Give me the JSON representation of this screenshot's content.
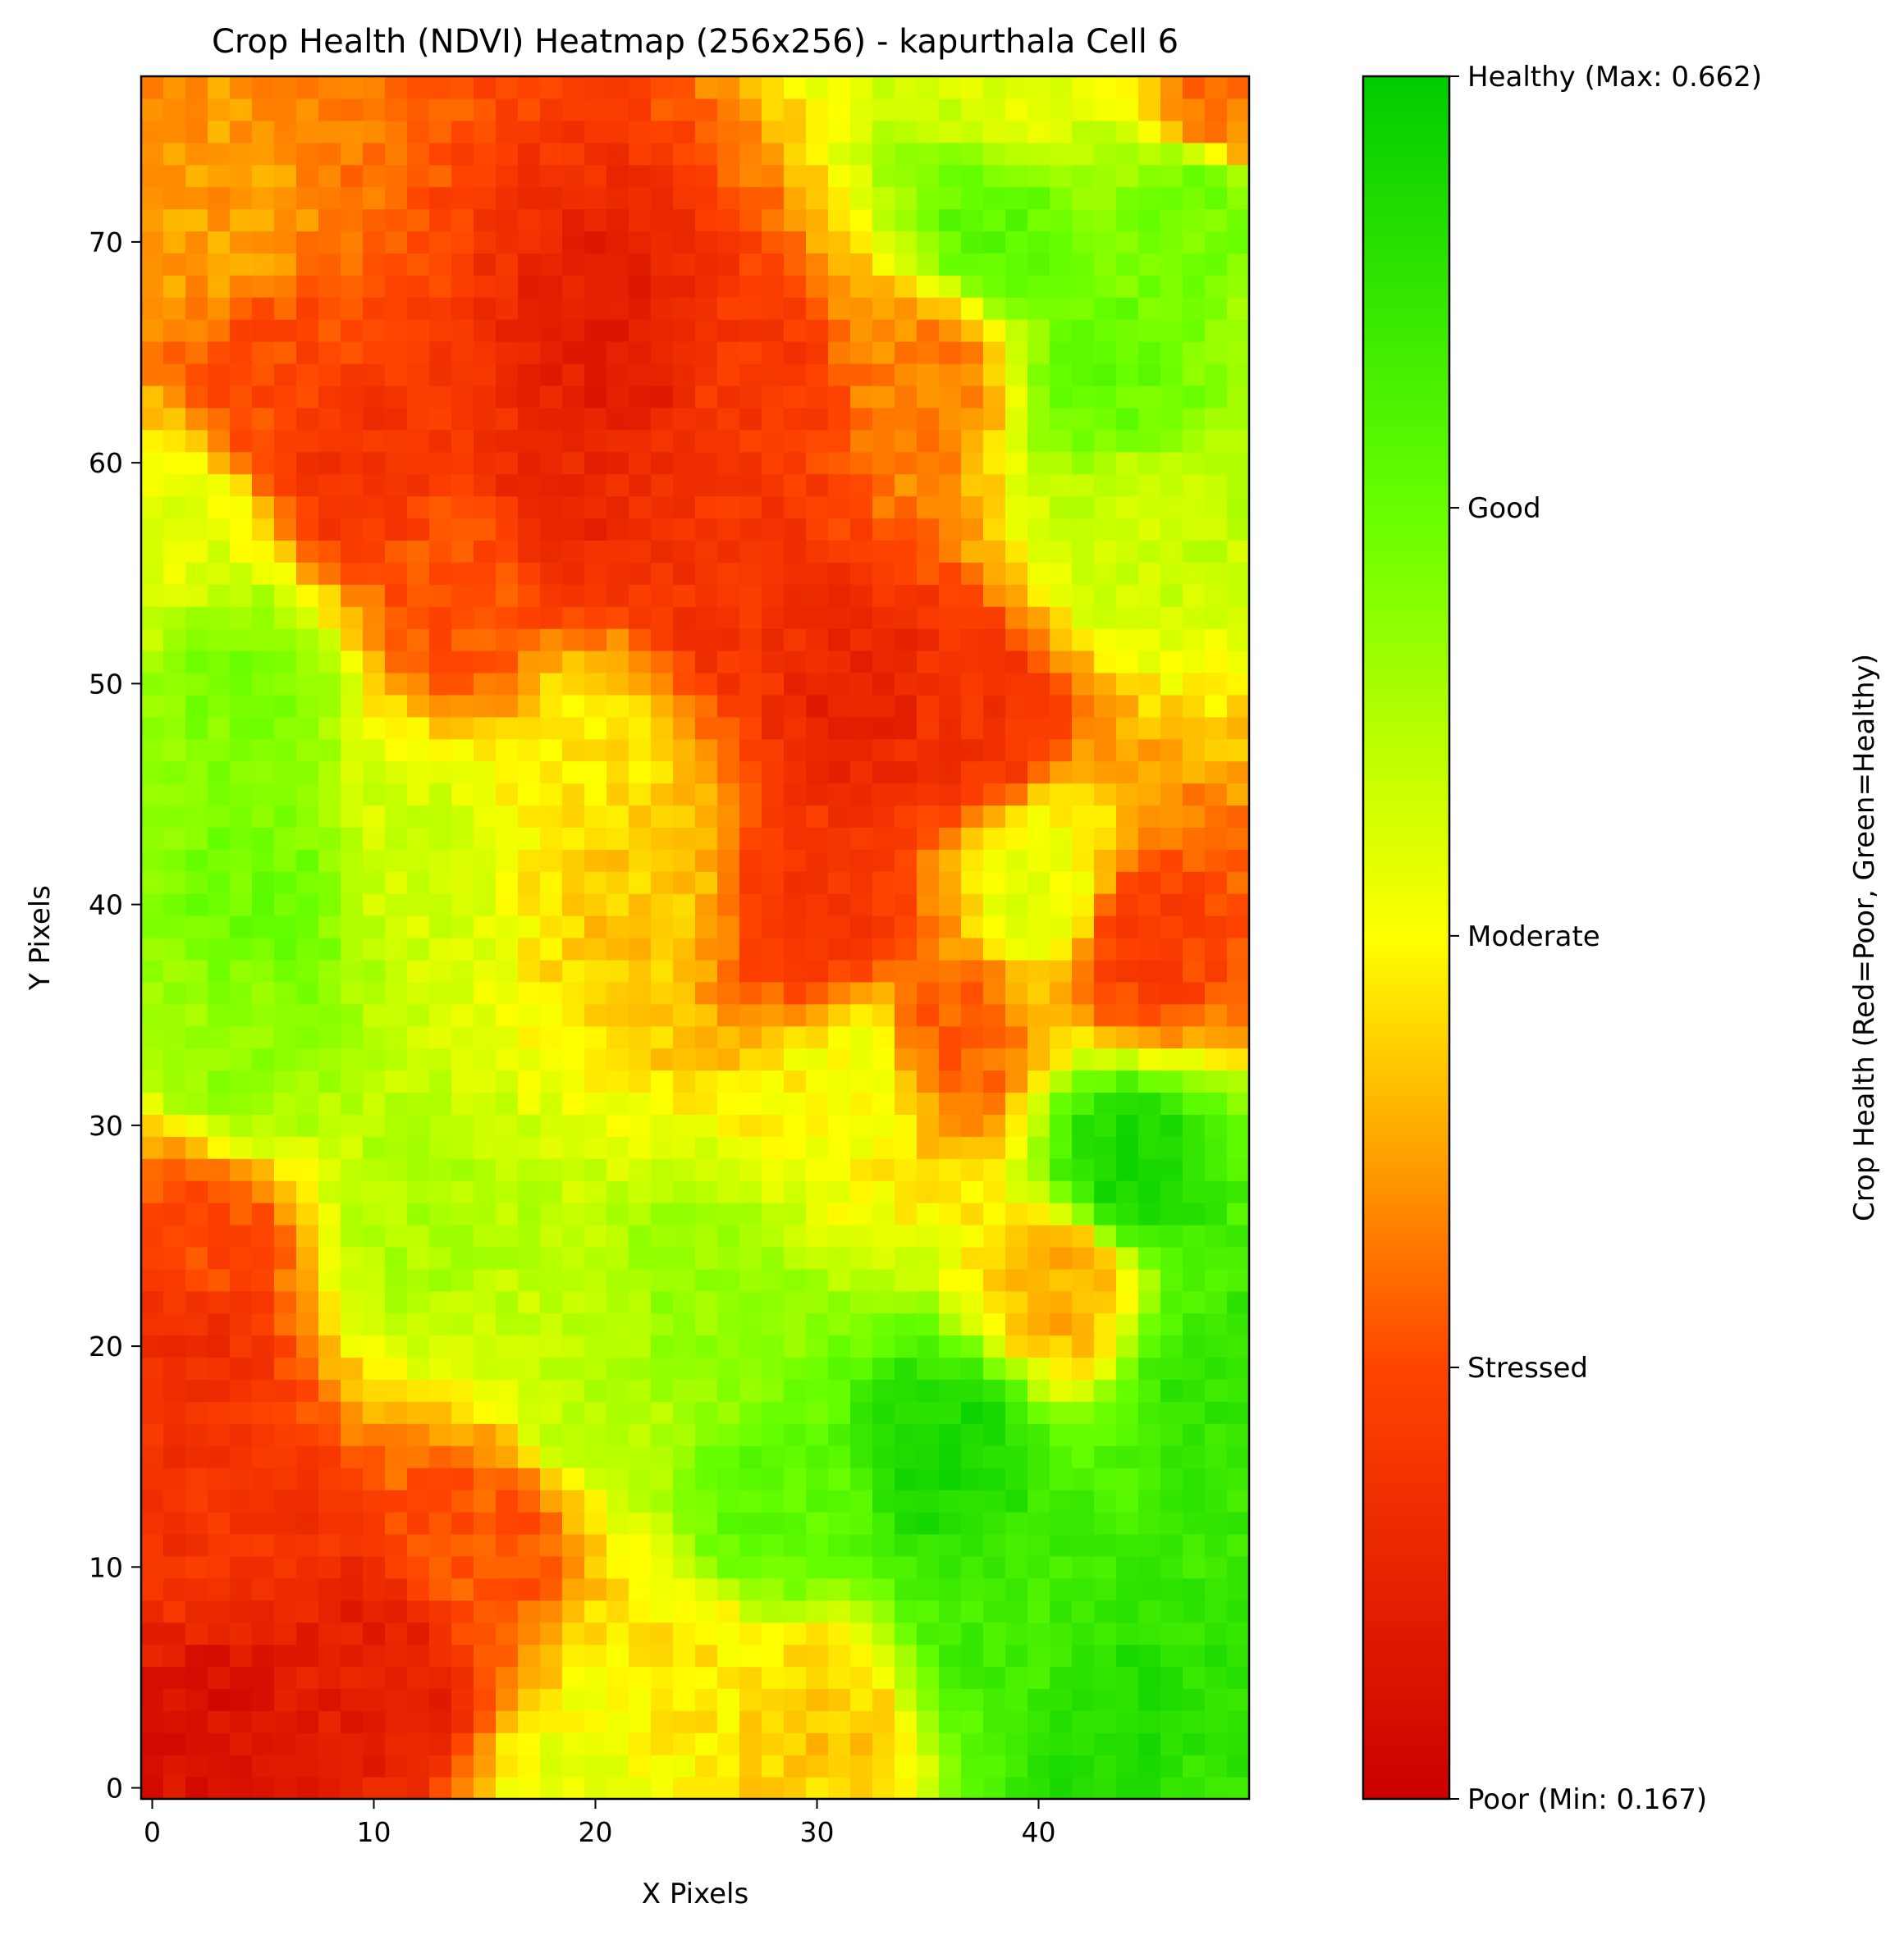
{
  "chart_data": {
    "type": "heatmap",
    "title": "Crop Health (NDVI) Heatmap (256x256) - kapurthala Cell 6",
    "xlabel": "X Pixels",
    "ylabel": "Y Pixels",
    "xlim": [
      -0.5,
      49.5
    ],
    "ylim": [
      -0.5,
      77.5
    ],
    "x_ticks": [
      0,
      10,
      20,
      30,
      40
    ],
    "y_ticks": [
      0,
      10,
      20,
      30,
      40,
      50,
      60,
      70
    ],
    "grid": "off",
    "grid_size": {
      "cols": 50,
      "rows": 78
    },
    "value_range": {
      "min": 0.167,
      "max": 0.662
    },
    "colormap": [
      "#cc0000",
      "#ff4400",
      "#ffff00",
      "#66ff00",
      "#00cc00"
    ],
    "colorbar": {
      "label": "Crop Health (Red=Poor, Green=Healthy)",
      "ticks": [
        {
          "value": 0.167,
          "label": "Poor (Min: 0.167)"
        },
        {
          "value": 0.291,
          "label": "Stressed"
        },
        {
          "value": 0.415,
          "label": "Moderate"
        },
        {
          "value": 0.538,
          "label": "Good"
        },
        {
          "value": 0.662,
          "label": "Healthy (Max: 0.662)"
        }
      ]
    },
    "regions_note": "NDVI field estimated from visual color regions",
    "anchors": [
      {
        "x": 21,
        "y": 65,
        "value": 0.22
      },
      {
        "x": 19,
        "y": 58,
        "value": 0.24
      },
      {
        "x": 9,
        "y": 60,
        "value": 0.26
      },
      {
        "x": 27,
        "y": 63,
        "value": 0.27
      },
      {
        "x": 32,
        "y": 49,
        "value": 0.23
      },
      {
        "x": 37,
        "y": 48,
        "value": 0.26
      },
      {
        "x": 30,
        "y": 40,
        "value": 0.26
      },
      {
        "x": 26,
        "y": 54,
        "value": 0.26
      },
      {
        "x": 14,
        "y": 54,
        "value": 0.3
      },
      {
        "x": 5,
        "y": 64,
        "value": 0.29
      },
      {
        "x": 48,
        "y": 76,
        "value": 0.32
      },
      {
        "x": 3,
        "y": 3,
        "value": 0.2
      },
      {
        "x": 10,
        "y": 5,
        "value": 0.22
      },
      {
        "x": 3,
        "y": 11,
        "value": 0.26
      },
      {
        "x": 1,
        "y": 20,
        "value": 0.25
      },
      {
        "x": 2,
        "y": 25,
        "value": 0.29
      },
      {
        "x": 15,
        "y": 11,
        "value": 0.3
      },
      {
        "x": 45,
        "y": 38,
        "value": 0.28
      },
      {
        "x": 36,
        "y": 34,
        "value": 0.31
      },
      {
        "x": 41,
        "y": 23,
        "value": 0.36
      },
      {
        "x": 5,
        "y": 40,
        "value": 0.53
      },
      {
        "x": 4,
        "y": 50,
        "value": 0.52
      },
      {
        "x": 4,
        "y": 33,
        "value": 0.5
      },
      {
        "x": 12,
        "y": 25,
        "value": 0.48
      },
      {
        "x": 20,
        "y": 18,
        "value": 0.47
      },
      {
        "x": 25,
        "y": 21,
        "value": 0.5
      },
      {
        "x": 28,
        "y": 13,
        "value": 0.55
      },
      {
        "x": 36,
        "y": 15,
        "value": 0.63
      },
      {
        "x": 38,
        "y": 8,
        "value": 0.58
      },
      {
        "x": 44,
        "y": 28,
        "value": 0.63
      },
      {
        "x": 48,
        "y": 18,
        "value": 0.6
      },
      {
        "x": 44,
        "y": 2,
        "value": 0.62
      },
      {
        "x": 48,
        "y": 0,
        "value": 0.6
      },
      {
        "x": 43,
        "y": 64,
        "value": 0.54
      },
      {
        "x": 38,
        "y": 71,
        "value": 0.55
      },
      {
        "x": 47,
        "y": 72,
        "value": 0.53
      },
      {
        "x": 44,
        "y": 57,
        "value": 0.46
      },
      {
        "x": 39,
        "y": 76,
        "value": 0.44
      },
      {
        "x": 3,
        "y": 70,
        "value": 0.35
      },
      {
        "x": 1,
        "y": 57,
        "value": 0.44
      },
      {
        "x": 22,
        "y": 41,
        "value": 0.38
      },
      {
        "x": 12,
        "y": 42,
        "value": 0.45
      },
      {
        "x": 20,
        "y": 47,
        "value": 0.4
      },
      {
        "x": 32,
        "y": 32,
        "value": 0.42
      },
      {
        "x": 24,
        "y": 5,
        "value": 0.4
      },
      {
        "x": 30,
        "y": 3,
        "value": 0.38
      },
      {
        "x": 20,
        "y": 0,
        "value": 0.43
      },
      {
        "x": 40,
        "y": 41,
        "value": 0.43
      },
      {
        "x": 35,
        "y": 64,
        "value": 0.33
      }
    ]
  }
}
